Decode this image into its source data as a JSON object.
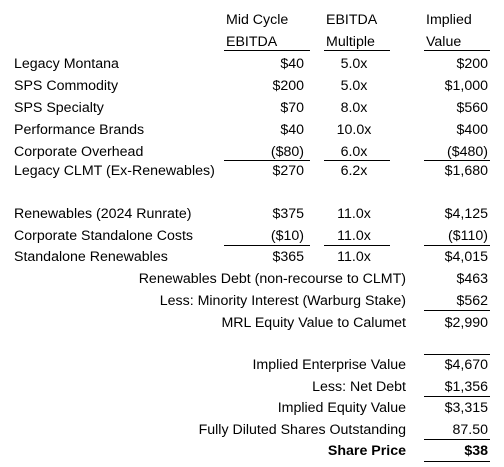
{
  "headers": {
    "col1": [
      "Mid Cycle",
      "EBITDA"
    ],
    "col2": [
      "EBITDA",
      "Multiple"
    ],
    "col3": [
      "Implied",
      "Value"
    ]
  },
  "rows": [
    {
      "label": "Legacy Montana",
      "ebitda": "$40",
      "multiple": "5.0x",
      "value": "$200"
    },
    {
      "label": "SPS Commodity",
      "ebitda": "$200",
      "multiple": "5.0x",
      "value": "$1,000"
    },
    {
      "label": "SPS Specialty",
      "ebitda": "$70",
      "multiple": "8.0x",
      "value": "$560"
    },
    {
      "label": "Performance Brands",
      "ebitda": "$40",
      "multiple": "10.0x",
      "value": "$400"
    },
    {
      "label": "Corporate Overhead",
      "ebitda": "($80)",
      "multiple": "6.0x",
      "value": "($480)"
    },
    {
      "label": "Legacy CLMT (Ex-Renewables)",
      "ebitda": "$270",
      "multiple": "6.2x",
      "value": "$1,680"
    },
    {
      "label": "Renewables (2024 Runrate)",
      "ebitda": "$375",
      "multiple": "11.0x",
      "value": "$4,125"
    },
    {
      "label": "Corporate Standalone Costs",
      "ebitda": "($10)",
      "multiple": "11.0x",
      "value": "($110)"
    },
    {
      "label": "Standalone Renewables",
      "ebitda": "$365",
      "multiple": "11.0x",
      "value": "$4,015"
    }
  ],
  "renewables_bridge": [
    {
      "label": "Renewables Debt (non-recourse to CLMT)",
      "value": "$463"
    },
    {
      "label": "Less: Minority Interest (Warburg Stake)",
      "value": "$562"
    },
    {
      "label": "MRL Equity Value to Calumet",
      "value": "$2,990"
    }
  ],
  "equity_bridge": [
    {
      "label": "Implied Enterprise Value",
      "value": "$4,670"
    },
    {
      "label": "Less: Net Debt",
      "value": "$1,356"
    },
    {
      "label": "Implied Equity Value",
      "value": "$3,315"
    },
    {
      "label": "Fully Diluted Shares Outstanding",
      "value": "87.50"
    },
    {
      "label": "Share Price",
      "value": "$38"
    }
  ]
}
